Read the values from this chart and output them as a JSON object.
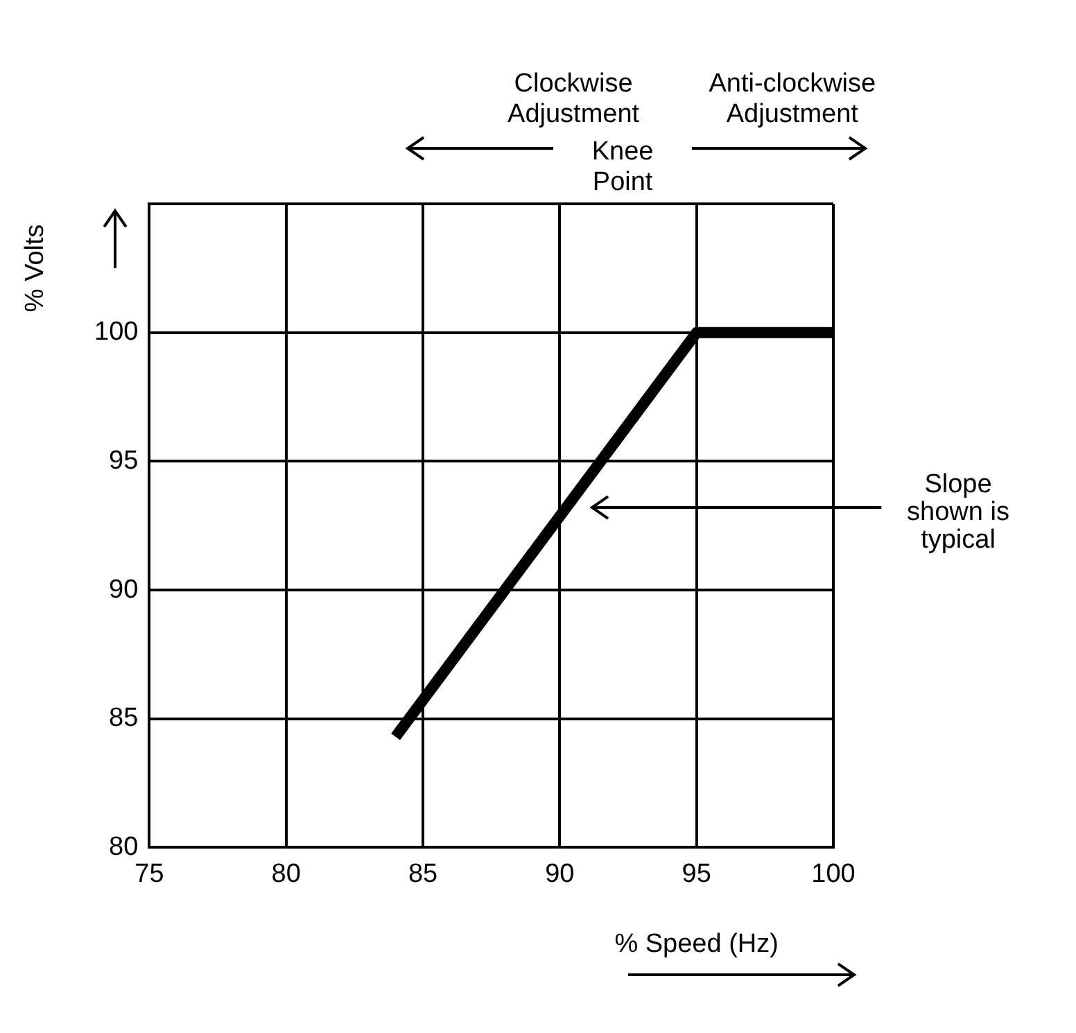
{
  "chart_data": {
    "type": "line",
    "xlabel": "% Speed (Hz)",
    "ylabel": "% Volts",
    "x": [
      84,
      95,
      100
    ],
    "series": [
      {
        "color": "#000000",
        "values": [
          84.3,
          100,
          100
        ]
      }
    ],
    "xlim": [
      75,
      100
    ],
    "xticks": [
      75,
      80,
      85,
      90,
      95,
      100
    ],
    "ylim": [
      80,
      105
    ],
    "yticks": [
      80,
      85,
      90,
      95,
      100,
      {
        "value": 105,
        "label": null
      }
    ],
    "grid": true,
    "legend": false,
    "marker": "none",
    "line_style": "solid",
    "annotations": [
      "Clockwise Adjustment",
      "Knee Point",
      "Anti-clockwise Adjustment",
      "Slope shown is typical"
    ]
  }
}
